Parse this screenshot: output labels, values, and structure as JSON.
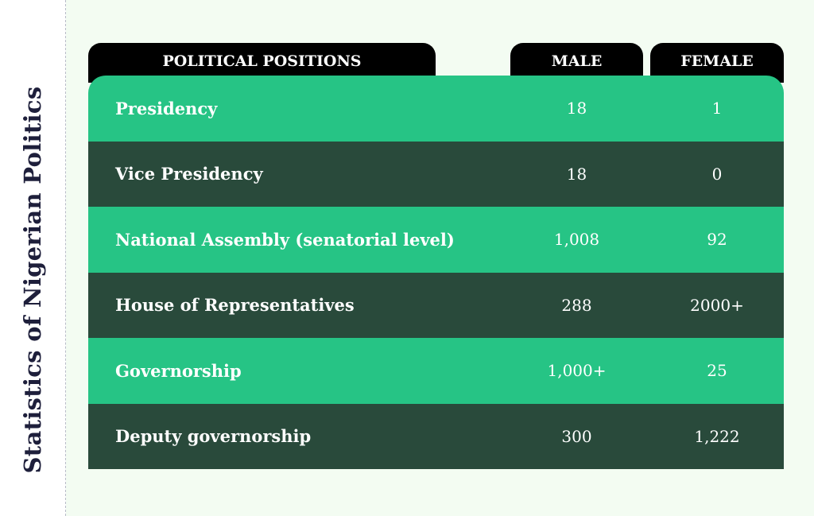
{
  "sidebar": {
    "title": "Statistics of Nigerian Politics"
  },
  "table": {
    "headers": {
      "position": "POLITICAL POSITIONS",
      "male": "MALE",
      "female": "FEMALE"
    },
    "rows": [
      {
        "position": "Presidency",
        "male": "18",
        "female": "1"
      },
      {
        "position": "Vice Presidency",
        "male": "18",
        "female": "0"
      },
      {
        "position": "National Assembly (senatorial level)",
        "male": "1,008",
        "female": "92"
      },
      {
        "position": "House of Representatives",
        "male": "288",
        "female": "2000+"
      },
      {
        "position": "Governorship",
        "male": "1,000+",
        "female": "25"
      },
      {
        "position": "Deputy governorship",
        "male": "300",
        "female": "1,222"
      }
    ]
  },
  "colors": {
    "row_light": "#26c485",
    "row_dark": "#294a3b",
    "header_bg": "#000000",
    "page_bg": "#f3fcf2",
    "title": "#1e1f3b"
  }
}
